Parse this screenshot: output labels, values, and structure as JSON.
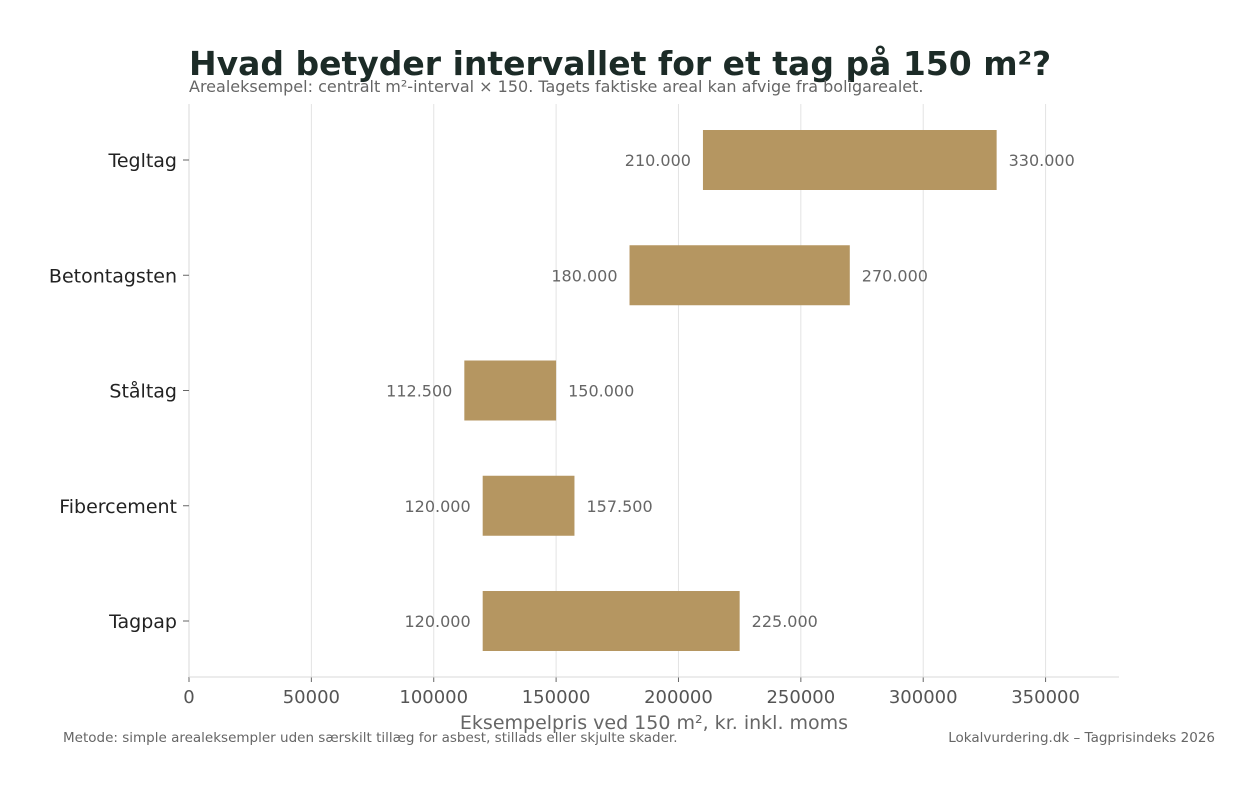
{
  "chart_data": {
    "type": "bar",
    "orientation": "horizontal-range",
    "title": "Hvad betyder intervallet for et tag på 150 m²?",
    "subtitle": "Arealeksempel: centralt m²-interval × 150. Tagets faktiske areal kan afvige fra boligarealet.",
    "xlabel": "Eksempelpris ved 150 m², kr. inkl. moms",
    "ylabel": "",
    "xlim": [
      0,
      380000
    ],
    "xticks": [
      0,
      50000,
      100000,
      150000,
      200000,
      250000,
      300000,
      350000
    ],
    "xtick_labels": [
      "0",
      "50000",
      "100000",
      "150000",
      "200000",
      "250000",
      "300000",
      "350000"
    ],
    "grid": "vertical",
    "bar_color": "#b59661",
    "categories": [
      "Tegltag",
      "Betontagsten",
      "Ståltag",
      "Fibercement",
      "Tagpap"
    ],
    "low": [
      210000,
      180000,
      112500,
      120000,
      120000
    ],
    "high": [
      330000,
      270000,
      150000,
      157500,
      225000
    ],
    "low_labels": [
      "210.000",
      "180.000",
      "112.500",
      "120.000",
      "120.000"
    ],
    "high_labels": [
      "330.000",
      "270.000",
      "150.000",
      "157.500",
      "225.000"
    ]
  },
  "footer": {
    "method_note": "Metode: simple arealeksempler uden særskilt tillæg for asbest, stillads eller skjulte skader.",
    "source": "Lokalvurdering.dk – Tagprisindeks 2026"
  }
}
